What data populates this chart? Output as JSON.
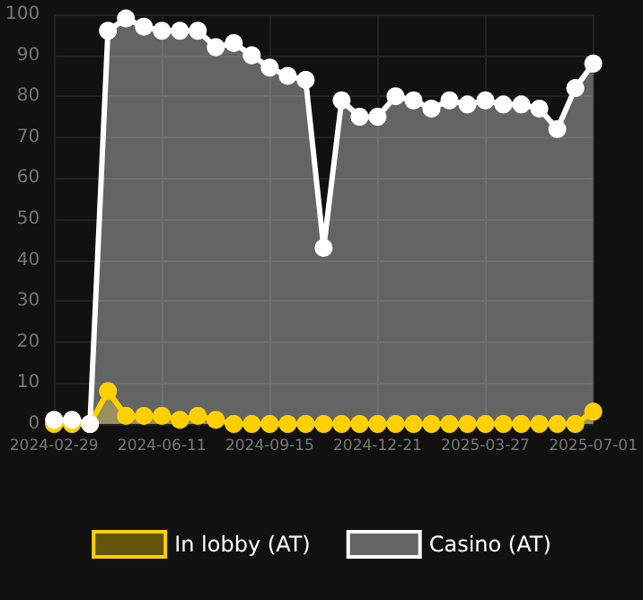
{
  "chart_data": {
    "type": "area",
    "categories": [
      "2024-02-29",
      null,
      null,
      null,
      null,
      null,
      "2024-06-11",
      null,
      null,
      null,
      null,
      null,
      "2024-09-15",
      null,
      null,
      null,
      null,
      null,
      "2024-12-21",
      null,
      null,
      null,
      null,
      null,
      "2025-03-27",
      null,
      null,
      null,
      null,
      null,
      "2025-07-01"
    ],
    "series": [
      {
        "name": "In lobby (AT)",
        "color": "#ffd000",
        "values": [
          0,
          0,
          0,
          8,
          2,
          2,
          2,
          1,
          2,
          1,
          0,
          0,
          0,
          0,
          0,
          0,
          0,
          0,
          0,
          0,
          0,
          0,
          0,
          0,
          0,
          0,
          0,
          0,
          0,
          0,
          3
        ]
      },
      {
        "name": "Casino (AT)",
        "color": "#ffffff",
        "values": [
          1,
          1,
          0,
          96,
          99,
          97,
          96,
          96,
          96,
          92,
          93,
          90,
          87,
          85,
          84,
          43,
          79,
          75,
          75,
          80,
          79,
          77,
          79,
          78,
          79,
          78,
          78,
          77,
          72,
          82,
          88
        ]
      }
    ],
    "ylim": [
      0,
      100
    ],
    "yticks": [
      0,
      10,
      20,
      30,
      40,
      50,
      60,
      70,
      80,
      90,
      100
    ],
    "grid": true,
    "legend": "bottom",
    "marker": "circle",
    "line_style": "solid"
  }
}
